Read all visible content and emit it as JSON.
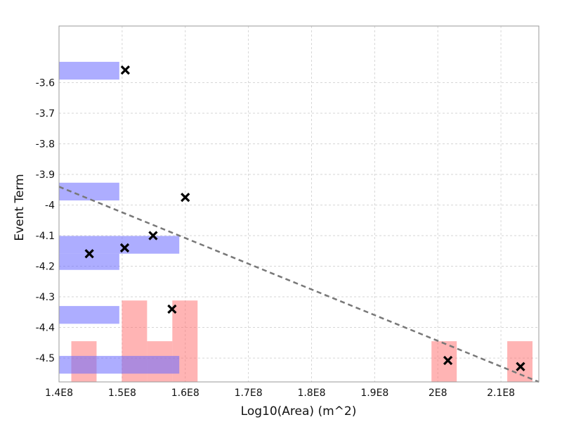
{
  "chart_data": {
    "type": "scatter",
    "xlabel": "Log10(Area) (m^2)",
    "ylabel": "Event Term",
    "xlim": [
      140000000,
      216000000
    ],
    "ylim": [
      -4.578,
      -3.415
    ],
    "grid": true,
    "x_ticks": [
      {
        "value": 140000000,
        "label": "1.4E8"
      },
      {
        "value": 150000000,
        "label": "1.5E8"
      },
      {
        "value": 160000000,
        "label": "1.6E8"
      },
      {
        "value": 170000000,
        "label": "1.7E8"
      },
      {
        "value": 180000000,
        "label": "1.8E8"
      },
      {
        "value": 190000000,
        "label": "1.9E8"
      },
      {
        "value": 200000000,
        "label": "2E8"
      },
      {
        "value": 210000000,
        "label": "2.1E8"
      }
    ],
    "y_ticks": [
      {
        "value": -3.6,
        "label": "-3.6"
      },
      {
        "value": -3.7,
        "label": "-3.7"
      },
      {
        "value": -3.8,
        "label": "-3.8"
      },
      {
        "value": -3.9,
        "label": "-3.9"
      },
      {
        "value": -4.0,
        "label": "-4"
      },
      {
        "value": -4.1,
        "label": "-4.1"
      },
      {
        "value": -4.2,
        "label": "-4.2"
      },
      {
        "value": -4.3,
        "label": "-4.3"
      },
      {
        "value": -4.4,
        "label": "-4.4"
      },
      {
        "value": -4.5,
        "label": "-4.5"
      }
    ],
    "points": [
      {
        "x": 150500000,
        "y": -3.559
      },
      {
        "x": 160000000,
        "y": -3.975
      },
      {
        "x": 144800000,
        "y": -4.159
      },
      {
        "x": 150400000,
        "y": -4.14
      },
      {
        "x": 154900000,
        "y": -4.1
      },
      {
        "x": 157900000,
        "y": -4.34
      },
      {
        "x": 201600000,
        "y": -4.508
      },
      {
        "x": 213100000,
        "y": -4.528
      }
    ],
    "trend_line": [
      {
        "x": 140000000,
        "y": -3.94
      },
      {
        "x": 216000000,
        "y": -4.578
      }
    ],
    "x_histogram": {
      "baseline": -4.578,
      "bars": [
        {
          "x0": 141950000,
          "x1": 145950000,
          "y_top": -4.445
        },
        {
          "x0": 149950000,
          "x1": 153950000,
          "y_top": -4.312
        },
        {
          "x0": 153950000,
          "x1": 157950000,
          "y_top": -4.445
        },
        {
          "x0": 157950000,
          "x1": 161950000,
          "y_top": -4.312
        },
        {
          "x0": 199000000,
          "x1": 203000000,
          "y_top": -4.445
        },
        {
          "x0": 211000000,
          "x1": 215000000,
          "y_top": -4.445
        }
      ]
    },
    "y_histogram": {
      "baseline": 140000000,
      "bars": [
        {
          "y0": -3.532,
          "y1": -3.59,
          "x_right": 149550000
        },
        {
          "y0": -3.927,
          "y1": -3.985,
          "x_right": 149550000
        },
        {
          "y0": -4.101,
          "y1": -4.159,
          "x_right": 159050000
        },
        {
          "y0": -4.159,
          "y1": -4.212,
          "x_right": 149550000
        },
        {
          "y0": -4.33,
          "y1": -4.388,
          "x_right": 149550000
        },
        {
          "y0": -4.493,
          "y1": -4.551,
          "x_right": 159050000
        }
      ]
    },
    "colors": {
      "marker": "#000000",
      "trend": "#787878",
      "x_hist": "#ff6a6a",
      "y_hist": "#6a6aff",
      "grid": "#d6d6d6",
      "frame": "#9a9a9a"
    }
  }
}
